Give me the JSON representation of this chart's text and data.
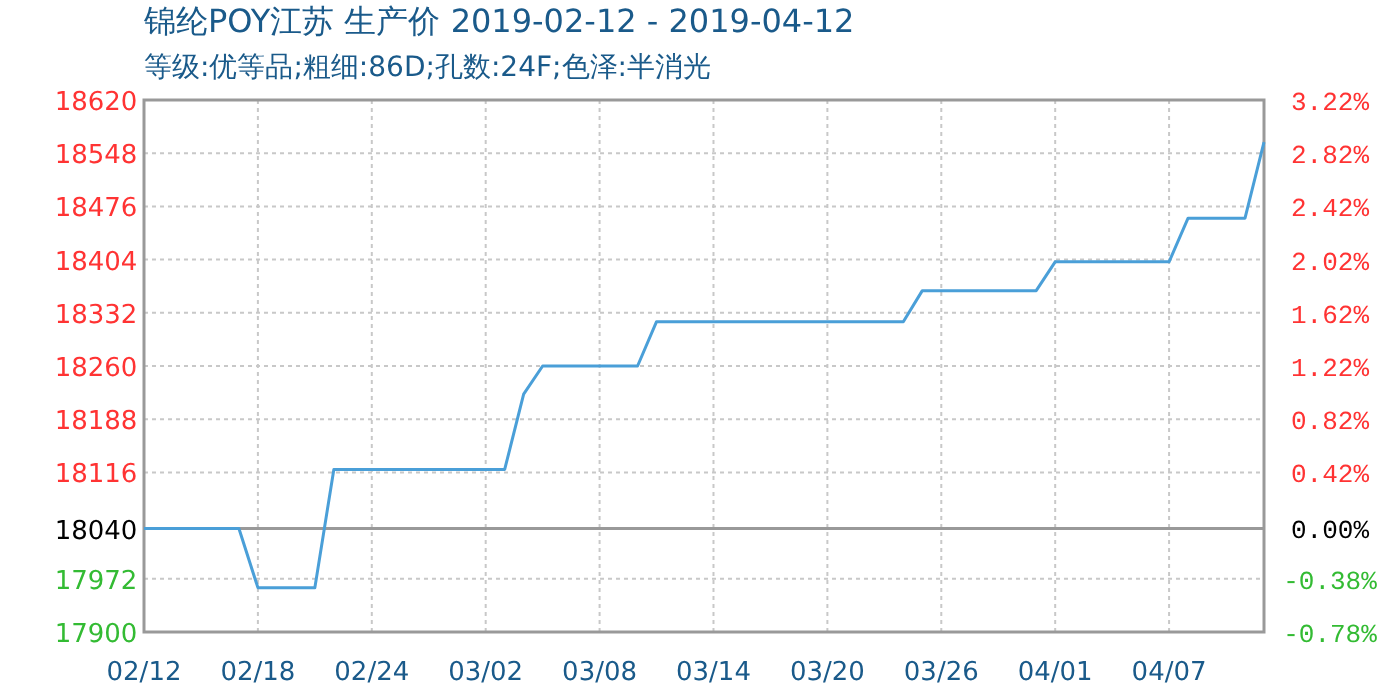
{
  "chart_data": {
    "type": "line",
    "title": "锦纶POY江苏 生产价 2019-02-12 - 2019-04-12",
    "subtitle": "等级:优等品;粗细:86D;孔数:24F;色泽:半消光",
    "x": [
      "2019-02-12",
      "2019-02-17",
      "2019-02-18",
      "2019-02-21",
      "2019-02-22",
      "2019-03-03",
      "2019-03-04",
      "2019-03-05",
      "2019-03-10",
      "2019-03-11",
      "2019-03-24",
      "2019-03-25",
      "2019-03-31",
      "2019-04-01",
      "2019-04-07",
      "2019-04-08",
      "2019-04-11",
      "2019-04-12"
    ],
    "series": [
      {
        "color": "#4a9fd8",
        "values": [
          18040,
          18040,
          17960,
          17960,
          18120,
          18120,
          18222,
          18260,
          18260,
          18320,
          18320,
          18362,
          18362,
          18401,
          18401,
          18460,
          18460,
          18563
        ]
      }
    ],
    "xlim": [
      "2019-02-12",
      "2019-04-12"
    ],
    "xticks": [
      {
        "value": "2019-02-12",
        "label": "02/12"
      },
      {
        "value": "2019-02-18",
        "label": "02/18"
      },
      {
        "value": "2019-02-24",
        "label": "02/24"
      },
      {
        "value": "2019-03-02",
        "label": "03/02"
      },
      {
        "value": "2019-03-08",
        "label": "03/08"
      },
      {
        "value": "2019-03-14",
        "label": "03/14"
      },
      {
        "value": "2019-03-20",
        "label": "03/20"
      },
      {
        "value": "2019-03-26",
        "label": "03/26"
      },
      {
        "value": "2019-04-01",
        "label": "04/01"
      },
      {
        "value": "2019-04-07",
        "label": "04/07"
      }
    ],
    "ylim": [
      17900,
      18620
    ],
    "yticks": [
      17900,
      17972,
      18040,
      18116,
      18188,
      18260,
      18332,
      18404,
      18476,
      18548,
      18620
    ],
    "y2lim": [
      -0.78,
      3.22
    ],
    "y2ticks": [
      {
        "value": -0.78,
        "label": "-0.78%"
      },
      {
        "value": -0.38,
        "label": "-0.38%"
      },
      {
        "value": 0,
        "label": "0.00%"
      },
      {
        "value": 0.42,
        "label": "0.42%"
      },
      {
        "value": 0.82,
        "label": "0.82%"
      },
      {
        "value": 1.22,
        "label": "1.22%"
      },
      {
        "value": 1.62,
        "label": "1.62%"
      },
      {
        "value": 2.02,
        "label": "2.02%"
      },
      {
        "value": 2.42,
        "label": "2.42%"
      },
      {
        "value": 2.82,
        "label": "2.82%"
      },
      {
        "value": 3.22,
        "label": "3.22%"
      }
    ],
    "ref_lines": [
      {
        "axis": "y",
        "value": 18040,
        "color": "#999999"
      }
    ],
    "grid": true,
    "marker": "none",
    "line_style": "solid"
  }
}
